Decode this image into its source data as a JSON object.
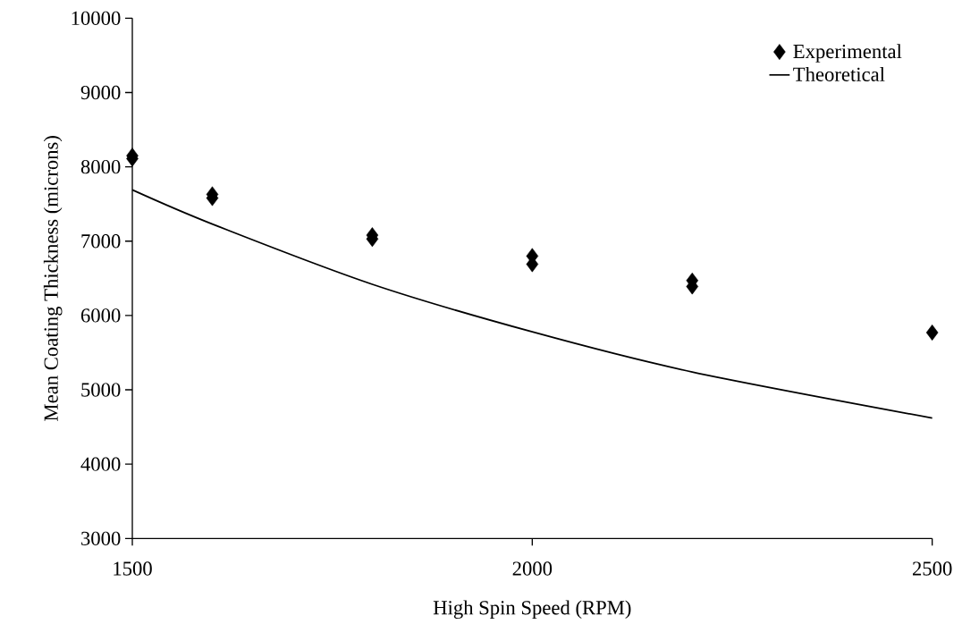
{
  "chart_data": {
    "type": "line",
    "xlabel": "High Spin Speed (RPM)",
    "ylabel": "Mean Coating Thickness (microns)",
    "xlim": [
      1500,
      2500
    ],
    "xticks": [
      1500,
      2000,
      2500
    ],
    "ylim": [
      3000,
      10000
    ],
    "yticks": [
      3000,
      4000,
      5000,
      6000,
      7000,
      8000,
      9000,
      10000
    ],
    "grid": false,
    "legend": "top right",
    "series": [
      {
        "name": "Experimental",
        "type": "scatter",
        "marker": "diamond",
        "color": "#000000",
        "x": [
          1500,
          1500,
          1600,
          1600,
          1800,
          1800,
          2000,
          2000,
          2200,
          2200,
          2500
        ],
        "values": [
          8150,
          8110,
          7630,
          7580,
          7080,
          7030,
          6800,
          6690,
          6470,
          6390,
          5770
        ]
      },
      {
        "name": "Theoretical",
        "color": "#000000",
        "x": [
          1500,
          1600,
          1800,
          2000,
          2200,
          2500
        ],
        "values": [
          7690,
          7230,
          6420,
          5780,
          5240,
          4620
        ]
      }
    ]
  }
}
